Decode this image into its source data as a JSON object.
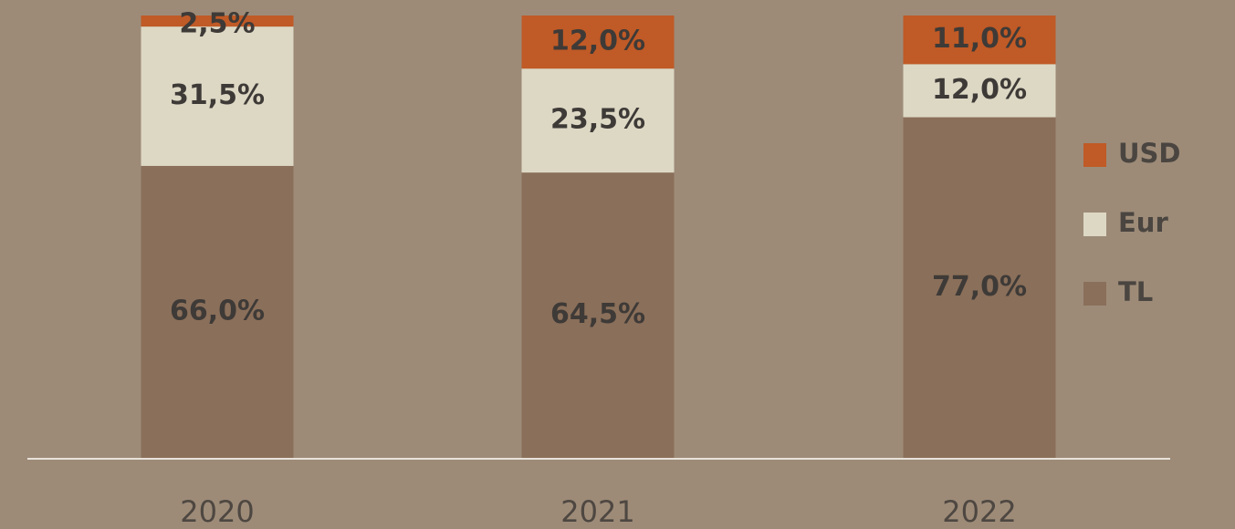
{
  "chart_data": {
    "type": "stacked_bar",
    "categories": [
      "2020",
      "2021",
      "2022"
    ],
    "ylim": [
      0,
      100
    ],
    "series": [
      {
        "name": "TL",
        "color": "#8a6f5a",
        "values": [
          66,
          64.5,
          77
        ],
        "value_labels": [
          "66,0%",
          "64,5%",
          "77,0%"
        ]
      },
      {
        "name": "Eur",
        "color": "#ddd8c4",
        "values": [
          31.5,
          23.5,
          12
        ],
        "value_labels": [
          "31,5%",
          "23,5%",
          "12,0%"
        ]
      },
      {
        "name": "USD",
        "color": "#c05a26",
        "values": [
          2.5,
          12,
          11
        ],
        "value_labels": [
          "2,5%",
          "12,0%",
          "11,0%"
        ]
      }
    ]
  }
}
